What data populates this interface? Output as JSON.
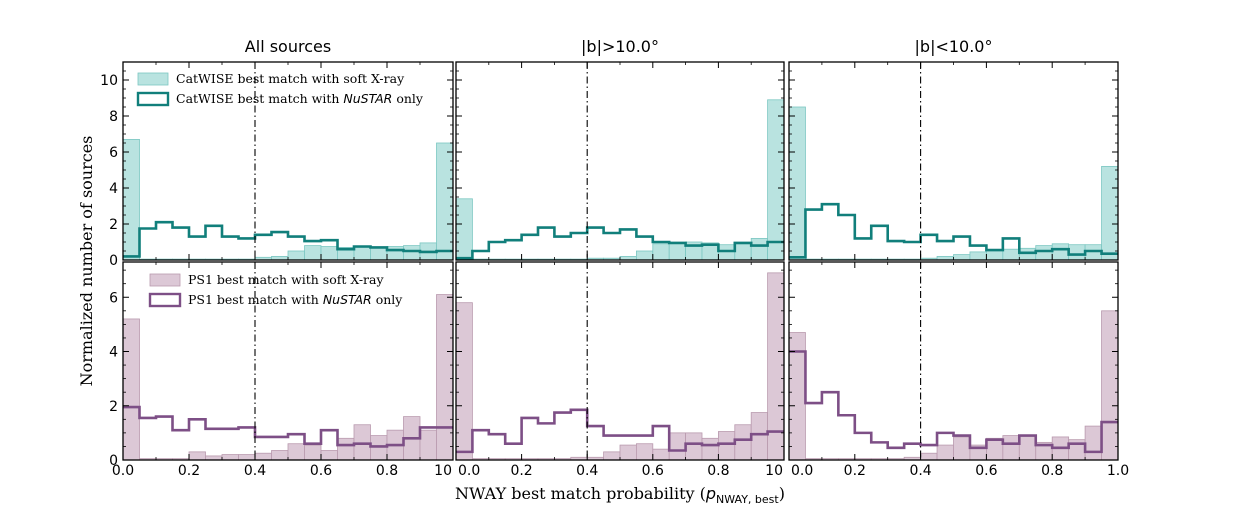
{
  "figure": {
    "ylabel": "Normalized number of sources",
    "xlabel_text": "NWAY best match probability (",
    "xlabel_math": "p",
    "xlabel_sub": "NWAY, best",
    "xlabel_close": ")",
    "col_titles": [
      "All sources",
      "|b|>10.0°",
      "|b|<10.0°"
    ],
    "legend_top": [
      {
        "label": "CatWISE best match with soft X-ray"
      },
      {
        "label_pre": "CatWISE best match with ",
        "label_it": "NuSTAR",
        "label_post": " only"
      }
    ],
    "legend_bottom": [
      {
        "label": "PS1 best match with soft X-ray"
      },
      {
        "label_pre": "PS1 best match with ",
        "label_it": "NuSTAR",
        "label_post": " only"
      }
    ],
    "x_ticks": [
      "0.0",
      "0.2",
      "0.4",
      "0.6",
      "0.8",
      "1.0"
    ],
    "x_ticks_trunc": [
      "0.0",
      "0.2",
      "0.4",
      "0.6",
      "0.8",
      "10"
    ],
    "y_ticks_top": [
      "0",
      "2",
      "4",
      "6",
      "8",
      "10"
    ],
    "y_ticks_bottom": [
      "0",
      "2",
      "4",
      "6"
    ]
  },
  "colors": {
    "catwise_fill": "#b9e3e0",
    "catwise_edge": "#7cc7c2",
    "catwise_line": "#117f7b",
    "ps1_fill": "#dcc8d6",
    "ps1_edge": "#b99aae",
    "ps1_line": "#7d4f86",
    "threshold": "#000000"
  },
  "chart_data": [
    {
      "type": "histogram",
      "panel": "top-left",
      "title": "All sources",
      "bin_edges": [
        0,
        0.05,
        0.1,
        0.15,
        0.2,
        0.25,
        0.3,
        0.35,
        0.4,
        0.45,
        0.5,
        0.55,
        0.6,
        0.65,
        0.7,
        0.75,
        0.8,
        0.85,
        0.9,
        0.95,
        1.0
      ],
      "ylim": [
        0,
        11
      ],
      "xlim": [
        0,
        1
      ],
      "threshold_x": 0.4,
      "series": [
        {
          "name": "CatWISE best match with soft X-ray",
          "style": "filled",
          "values": [
            6.7,
            0.05,
            0.05,
            0.05,
            0.05,
            0.05,
            0.05,
            0.05,
            0.15,
            0.2,
            0.5,
            0.8,
            0.75,
            0.7,
            0.7,
            0.7,
            0.75,
            0.8,
            0.95,
            6.5
          ]
        },
        {
          "name": "CatWISE best match with NuSTAR only",
          "style": "step",
          "values": [
            0.2,
            1.75,
            2.1,
            1.8,
            1.3,
            1.9,
            1.3,
            1.2,
            1.4,
            1.55,
            1.3,
            1.05,
            1.1,
            0.6,
            0.75,
            0.7,
            0.55,
            0.5,
            0.45,
            0.5
          ]
        }
      ]
    },
    {
      "type": "histogram",
      "panel": "top-middle",
      "title": "|b|>10.0°",
      "bin_edges": [
        0,
        0.05,
        0.1,
        0.15,
        0.2,
        0.25,
        0.3,
        0.35,
        0.4,
        0.45,
        0.5,
        0.55,
        0.6,
        0.65,
        0.7,
        0.75,
        0.8,
        0.85,
        0.9,
        0.95,
        1.0
      ],
      "ylim": [
        0,
        11
      ],
      "xlim": [
        0,
        1
      ],
      "threshold_x": 0.4,
      "series": [
        {
          "name": "CatWISE best match with soft X-ray",
          "style": "filled",
          "values": [
            3.4,
            0.05,
            0.05,
            0.05,
            0.05,
            0.05,
            0.05,
            0.05,
            0.1,
            0.1,
            0.2,
            0.5,
            0.9,
            0.95,
            1.0,
            0.95,
            0.85,
            0.9,
            1.2,
            8.9
          ]
        },
        {
          "name": "CatWISE best match with NuSTAR only",
          "style": "step",
          "values": [
            0.1,
            0.5,
            1.0,
            1.1,
            1.4,
            1.8,
            1.3,
            1.5,
            1.8,
            1.5,
            1.7,
            1.3,
            1.0,
            0.95,
            0.8,
            0.85,
            0.5,
            0.95,
            0.8,
            1.0
          ]
        }
      ]
    },
    {
      "type": "histogram",
      "panel": "top-right",
      "title": "|b|<10.0°",
      "bin_edges": [
        0,
        0.05,
        0.1,
        0.15,
        0.2,
        0.25,
        0.3,
        0.35,
        0.4,
        0.45,
        0.5,
        0.55,
        0.6,
        0.65,
        0.7,
        0.75,
        0.8,
        0.85,
        0.9,
        0.95,
        1.0
      ],
      "ylim": [
        0,
        11
      ],
      "xlim": [
        0,
        1
      ],
      "threshold_x": 0.4,
      "series": [
        {
          "name": "CatWISE best match with soft X-ray",
          "style": "filled",
          "values": [
            8.5,
            0.05,
            0.05,
            0.05,
            0.05,
            0.05,
            0.05,
            0.05,
            0.1,
            0.2,
            0.3,
            0.45,
            0.55,
            0.6,
            0.65,
            0.8,
            0.9,
            0.85,
            0.85,
            5.2
          ]
        },
        {
          "name": "CatWISE best match with NuSTAR only",
          "style": "step",
          "values": [
            0.15,
            2.8,
            3.1,
            2.5,
            1.2,
            1.9,
            1.05,
            1.0,
            1.4,
            1.05,
            1.3,
            0.8,
            0.55,
            1.2,
            0.4,
            0.5,
            0.6,
            0.3,
            0.5,
            0.35
          ]
        }
      ]
    },
    {
      "type": "histogram",
      "panel": "bottom-left",
      "bin_edges": [
        0,
        0.05,
        0.1,
        0.15,
        0.2,
        0.25,
        0.3,
        0.35,
        0.4,
        0.45,
        0.5,
        0.55,
        0.6,
        0.65,
        0.7,
        0.75,
        0.8,
        0.85,
        0.9,
        0.95,
        1.0
      ],
      "ylim": [
        0,
        7.3
      ],
      "xlim": [
        0,
        1
      ],
      "threshold_x": 0.4,
      "series": [
        {
          "name": "PS1 best match with soft X-ray",
          "style": "filled",
          "values": [
            5.2,
            0.05,
            0.05,
            0.05,
            0.3,
            0.15,
            0.2,
            0.2,
            0.25,
            0.35,
            0.6,
            0.55,
            0.35,
            0.8,
            1.3,
            0.9,
            1.1,
            1.6,
            1.1,
            6.1
          ]
        },
        {
          "name": "PS1 best match with NuSTAR only",
          "style": "step",
          "values": [
            1.95,
            1.55,
            1.6,
            1.1,
            1.5,
            1.15,
            1.15,
            1.2,
            0.85,
            0.85,
            0.95,
            0.6,
            1.1,
            0.55,
            0.6,
            0.5,
            0.55,
            0.8,
            1.2,
            1.2
          ]
        }
      ]
    },
    {
      "type": "histogram",
      "panel": "bottom-middle",
      "bin_edges": [
        0,
        0.05,
        0.1,
        0.15,
        0.2,
        0.25,
        0.3,
        0.35,
        0.4,
        0.45,
        0.5,
        0.55,
        0.6,
        0.65,
        0.7,
        0.75,
        0.8,
        0.85,
        0.9,
        0.95,
        1.0
      ],
      "ylim": [
        0,
        7.3
      ],
      "xlim": [
        0,
        1
      ],
      "threshold_x": 0.4,
      "series": [
        {
          "name": "PS1 best match with soft X-ray",
          "style": "filled",
          "values": [
            5.8,
            0.05,
            0.05,
            0.05,
            0.05,
            0.05,
            0.05,
            0.1,
            0.1,
            0.3,
            0.55,
            0.6,
            0.4,
            1.0,
            1.0,
            0.8,
            1.05,
            1.3,
            1.75,
            6.9
          ]
        },
        {
          "name": "PS1 best match with NuSTAR only",
          "style": "step",
          "values": [
            0.3,
            1.1,
            0.95,
            0.6,
            1.55,
            1.35,
            1.75,
            1.85,
            1.25,
            0.9,
            0.9,
            0.9,
            1.25,
            0.35,
            0.6,
            0.55,
            0.6,
            0.75,
            0.95,
            1.05
          ]
        }
      ]
    },
    {
      "type": "histogram",
      "panel": "bottom-right",
      "bin_edges": [
        0,
        0.05,
        0.1,
        0.15,
        0.2,
        0.25,
        0.3,
        0.35,
        0.4,
        0.45,
        0.5,
        0.55,
        0.6,
        0.65,
        0.7,
        0.75,
        0.8,
        0.85,
        0.9,
        0.95,
        1.0
      ],
      "ylim": [
        0,
        7.3
      ],
      "xlim": [
        0,
        1
      ],
      "threshold_x": 0.4,
      "series": [
        {
          "name": "PS1 best match with soft X-ray",
          "style": "filled",
          "values": [
            4.7,
            0.05,
            0.05,
            0.05,
            0.05,
            0.05,
            0.05,
            0.1,
            0.25,
            0.55,
            0.85,
            0.55,
            0.8,
            0.9,
            0.9,
            0.65,
            0.85,
            0.75,
            1.25,
            5.5
          ]
        },
        {
          "name": "PS1 best match with NuSTAR only",
          "style": "step",
          "values": [
            4.0,
            2.1,
            2.5,
            1.65,
            1.0,
            0.65,
            0.45,
            0.6,
            0.55,
            1.0,
            0.9,
            0.45,
            0.75,
            0.6,
            0.9,
            0.55,
            0.45,
            0.6,
            0.3,
            1.4
          ]
        }
      ]
    }
  ]
}
